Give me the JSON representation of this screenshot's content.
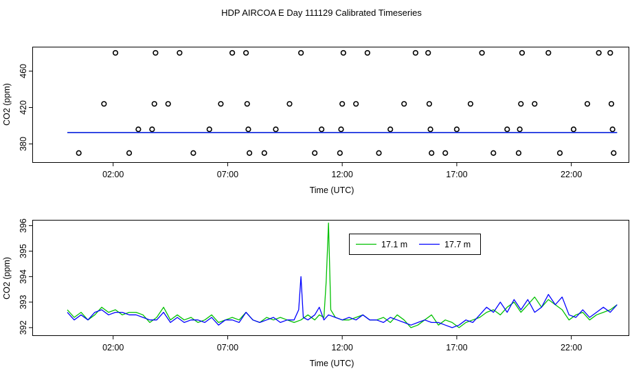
{
  "title": "HDP AIRCOA E  Day 111129  Calibrated Timeseries",
  "colors": {
    "green": "#00c000",
    "blue": "#0000ff",
    "axis": "#000000"
  },
  "chart_data": [
    {
      "type": "scatter",
      "title": "",
      "xlabel": "Time (UTC)",
      "ylabel": "CO2 (ppm)",
      "xlim": [
        -1.5,
        24.5
      ],
      "ylim": [
        360,
        486
      ],
      "x_ticks": [
        2,
        7,
        12,
        17,
        22
      ],
      "x_tick_labels": [
        "02:00",
        "07:00",
        "12:00",
        "17:00",
        "22:00"
      ],
      "y_ticks": [
        380,
        420,
        460
      ],
      "y_tick_labels": [
        "380",
        "420",
        "460"
      ],
      "grid": false,
      "series": [
        {
          "marker": "open-circle",
          "color": "#000000",
          "points": [
            [
              0.5,
              370
            ],
            [
              1.6,
              424
            ],
            [
              2.1,
              480
            ],
            [
              2.7,
              370
            ],
            [
              3.1,
              396
            ],
            [
              3.7,
              396
            ],
            [
              3.8,
              424
            ],
            [
              3.85,
              480
            ],
            [
              4.4,
              424
            ],
            [
              4.9,
              480
            ],
            [
              5.5,
              370
            ],
            [
              6.2,
              396
            ],
            [
              6.7,
              424
            ],
            [
              7.2,
              480
            ],
            [
              7.8,
              480
            ],
            [
              7.85,
              424
            ],
            [
              7.9,
              396
            ],
            [
              7.95,
              370
            ],
            [
              8.6,
              370
            ],
            [
              9.1,
              396
            ],
            [
              9.7,
              424
            ],
            [
              10.2,
              480
            ],
            [
              10.8,
              370
            ],
            [
              11.1,
              396
            ],
            [
              11.9,
              370
            ],
            [
              11.95,
              396
            ],
            [
              12.0,
              424
            ],
            [
              12.05,
              480
            ],
            [
              12.6,
              424
            ],
            [
              13.1,
              480
            ],
            [
              13.6,
              370
            ],
            [
              14.1,
              396
            ],
            [
              14.7,
              424
            ],
            [
              15.2,
              480
            ],
            [
              15.75,
              480
            ],
            [
              15.8,
              424
            ],
            [
              15.85,
              396
            ],
            [
              15.9,
              370
            ],
            [
              16.5,
              370
            ],
            [
              17.0,
              396
            ],
            [
              17.6,
              424
            ],
            [
              18.1,
              480
            ],
            [
              18.6,
              370
            ],
            [
              19.2,
              396
            ],
            [
              19.7,
              370
            ],
            [
              19.75,
              396
            ],
            [
              19.8,
              424
            ],
            [
              19.85,
              480
            ],
            [
              20.4,
              424
            ],
            [
              21.0,
              480
            ],
            [
              21.5,
              370
            ],
            [
              22.1,
              396
            ],
            [
              22.7,
              424
            ],
            [
              23.2,
              480
            ],
            [
              23.7,
              480
            ],
            [
              23.75,
              424
            ],
            [
              23.8,
              396
            ],
            [
              23.85,
              370
            ]
          ]
        },
        {
          "name": "",
          "marker": "line",
          "color": "#00c000",
          "x_range": [
            0,
            24
          ],
          "values": [
            392.5
          ]
        },
        {
          "name": "",
          "marker": "line",
          "color": "#0000ff",
          "x_range": [
            0,
            24
          ],
          "values": [
            392.5
          ]
        }
      ]
    },
    {
      "type": "line",
      "title": "",
      "xlabel": "Time (UTC)",
      "ylabel": "CO2 (ppm)",
      "xlim": [
        -1.5,
        24.5
      ],
      "ylim": [
        391.7,
        396.2
      ],
      "x_ticks": [
        2,
        7,
        12,
        17,
        22
      ],
      "x_tick_labels": [
        "02:00",
        "07:00",
        "12:00",
        "17:00",
        "22:00"
      ],
      "y_ticks": [
        392,
        393,
        394,
        395,
        396
      ],
      "y_tick_labels": [
        "392",
        "393",
        "394",
        "395",
        "396"
      ],
      "grid": false,
      "legend": {
        "placement": "top-right",
        "entries": [
          "17.1 m",
          "17.7 m"
        ]
      },
      "series": [
        {
          "name": "17.1 m",
          "color": "#00c000",
          "x": [
            0.0,
            0.3,
            0.6,
            0.9,
            1.2,
            1.5,
            1.8,
            2.1,
            2.4,
            2.7,
            3.0,
            3.3,
            3.6,
            3.9,
            4.2,
            4.5,
            4.8,
            5.1,
            5.4,
            5.7,
            6.0,
            6.3,
            6.6,
            6.9,
            7.2,
            7.5,
            7.8,
            8.1,
            8.4,
            8.7,
            9.0,
            9.3,
            9.6,
            9.9,
            10.2,
            10.5,
            10.8,
            11.0,
            11.2,
            11.3,
            11.4,
            11.5,
            11.7,
            12.0,
            12.3,
            12.6,
            12.9,
            13.2,
            13.5,
            13.8,
            14.1,
            14.4,
            14.7,
            15.0,
            15.3,
            15.6,
            15.9,
            16.2,
            16.5,
            16.8,
            17.1,
            17.4,
            17.7,
            18.0,
            18.3,
            18.6,
            18.9,
            19.2,
            19.5,
            19.8,
            20.1,
            20.4,
            20.7,
            21.0,
            21.3,
            21.6,
            21.9,
            22.2,
            22.5,
            22.8,
            23.1,
            23.4,
            23.7,
            24.0
          ],
          "values": [
            392.7,
            392.4,
            392.6,
            392.3,
            392.5,
            392.8,
            392.6,
            392.7,
            392.5,
            392.6,
            392.6,
            392.5,
            392.2,
            392.4,
            392.8,
            392.3,
            392.5,
            392.3,
            392.4,
            392.2,
            392.3,
            392.5,
            392.2,
            392.3,
            392.4,
            392.3,
            392.6,
            392.3,
            392.2,
            392.4,
            392.3,
            392.4,
            392.3,
            392.2,
            392.3,
            392.5,
            392.3,
            392.5,
            392.4,
            393.8,
            396.1,
            392.7,
            392.4,
            392.3,
            392.3,
            392.4,
            392.5,
            392.3,
            392.3,
            392.4,
            392.2,
            392.5,
            392.3,
            392.0,
            392.1,
            392.3,
            392.5,
            392.1,
            392.3,
            392.2,
            392.0,
            392.2,
            392.3,
            392.4,
            392.6,
            392.7,
            392.5,
            392.8,
            393.0,
            392.6,
            392.9,
            393.2,
            392.8,
            393.1,
            392.9,
            392.7,
            392.3,
            392.5,
            392.6,
            392.3,
            392.5,
            392.6,
            392.7,
            392.9
          ]
        },
        {
          "name": "17.7 m",
          "color": "#0000ff",
          "x": [
            0.0,
            0.3,
            0.6,
            0.9,
            1.2,
            1.5,
            1.8,
            2.1,
            2.4,
            2.7,
            3.0,
            3.3,
            3.6,
            3.9,
            4.2,
            4.5,
            4.8,
            5.1,
            5.4,
            5.7,
            6.0,
            6.3,
            6.6,
            6.9,
            7.2,
            7.5,
            7.8,
            8.1,
            8.4,
            8.7,
            9.0,
            9.3,
            9.6,
            9.9,
            10.1,
            10.2,
            10.3,
            10.5,
            10.8,
            11.0,
            11.2,
            11.4,
            11.7,
            12.0,
            12.3,
            12.6,
            12.9,
            13.2,
            13.5,
            13.8,
            14.1,
            14.4,
            14.7,
            15.0,
            15.3,
            15.6,
            15.9,
            16.2,
            16.5,
            16.8,
            17.1,
            17.4,
            17.7,
            18.0,
            18.3,
            18.6,
            18.9,
            19.2,
            19.5,
            19.8,
            20.1,
            20.4,
            20.7,
            21.0,
            21.3,
            21.6,
            21.9,
            22.2,
            22.5,
            22.8,
            23.1,
            23.4,
            23.7,
            24.0
          ],
          "values": [
            392.6,
            392.3,
            392.5,
            392.3,
            392.6,
            392.7,
            392.5,
            392.6,
            392.6,
            392.5,
            392.5,
            392.4,
            392.3,
            392.3,
            392.6,
            392.2,
            392.4,
            392.2,
            392.3,
            392.3,
            392.2,
            392.4,
            392.1,
            392.3,
            392.3,
            392.2,
            392.6,
            392.3,
            392.2,
            392.3,
            392.4,
            392.2,
            392.3,
            392.3,
            392.7,
            394.0,
            392.4,
            392.3,
            392.5,
            392.8,
            392.3,
            392.5,
            392.4,
            392.3,
            392.4,
            392.3,
            392.5,
            392.3,
            392.3,
            392.2,
            392.4,
            392.3,
            392.2,
            392.1,
            392.2,
            392.3,
            392.2,
            392.2,
            392.1,
            392.0,
            392.1,
            392.3,
            392.2,
            392.5,
            392.8,
            392.6,
            393.0,
            392.6,
            393.1,
            392.7,
            393.1,
            392.6,
            392.8,
            393.3,
            392.9,
            393.2,
            392.5,
            392.4,
            392.7,
            392.4,
            392.6,
            392.8,
            392.6,
            392.9
          ]
        }
      ]
    }
  ]
}
